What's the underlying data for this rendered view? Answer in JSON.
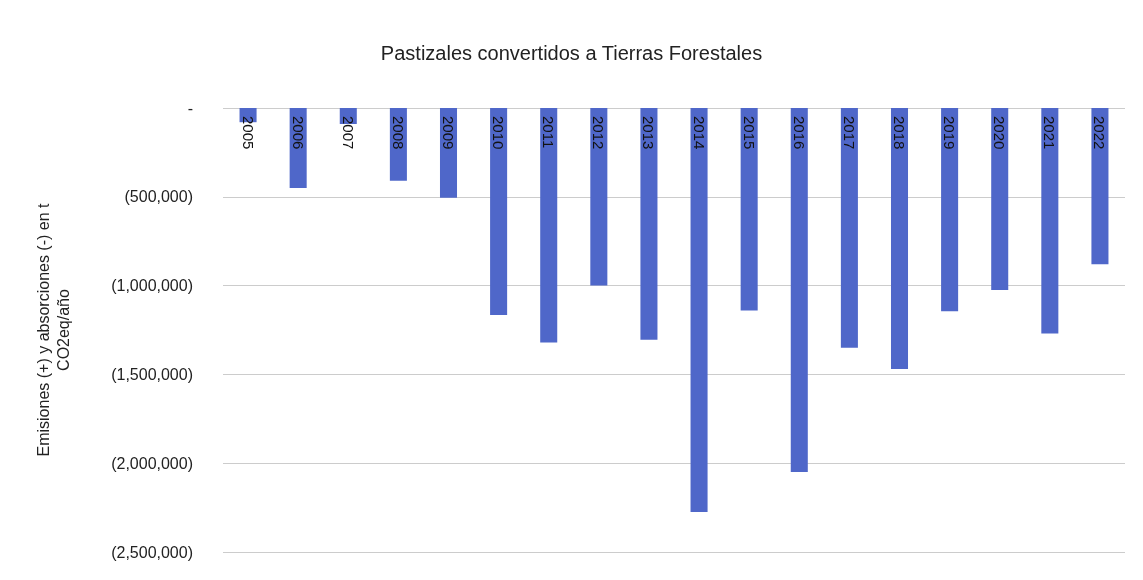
{
  "chart_data": {
    "type": "bar",
    "title": "Pastizales convertidos a Tierras Forestales",
    "ylabel": "Emisiones (+) y absorciones (-) en t\nCO2eq/año",
    "categories": [
      "2005",
      "2006",
      "2007",
      "2008",
      "2009",
      "2010",
      "2011",
      "2012",
      "2013",
      "2014",
      "2015",
      "2016",
      "2017",
      "2018",
      "2019",
      "2020",
      "2021",
      "2022"
    ],
    "values": [
      -80000,
      -450000,
      -90000,
      -410000,
      -505000,
      -1165000,
      -1320000,
      -1000000,
      -1305000,
      -2275000,
      -1140000,
      -2050000,
      -1350000,
      -1470000,
      -1145000,
      -1025000,
      -1270000,
      -880000
    ],
    "color": "#4f67c9",
    "ylim": [
      -2500000,
      0
    ],
    "yticks": [
      {
        "value": 0,
        "label": "-"
      },
      {
        "value": -500000,
        "label": "(500,000)"
      },
      {
        "value": -1000000,
        "label": "(1,000,000)"
      },
      {
        "value": -1500000,
        "label": "(1,500,000)"
      },
      {
        "value": -2000000,
        "label": "(2,000,000)"
      },
      {
        "value": -2500000,
        "label": "(2,500,000)"
      }
    ],
    "grid": "y"
  }
}
